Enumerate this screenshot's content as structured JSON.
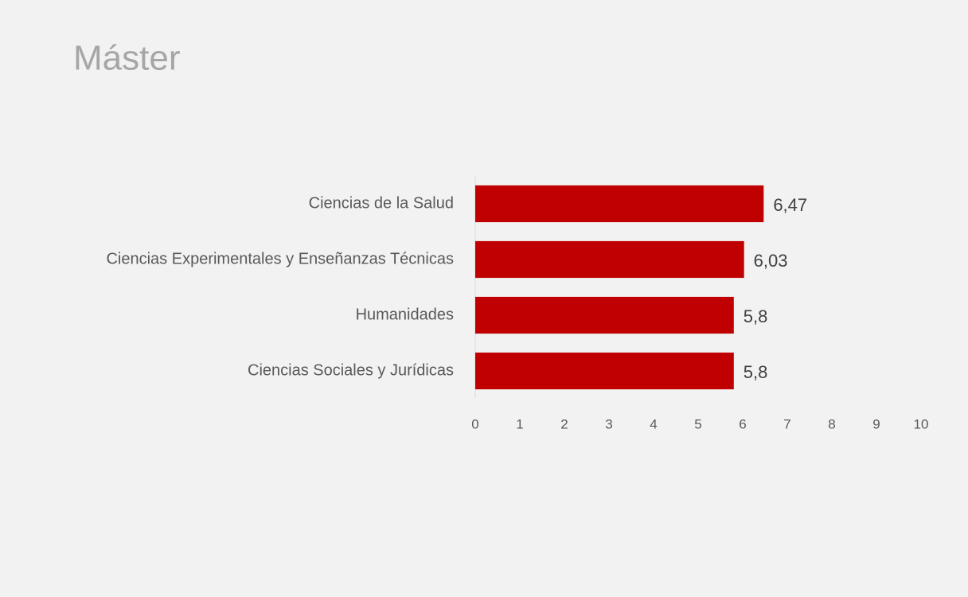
{
  "chart_data": {
    "type": "bar",
    "orientation": "horizontal",
    "title": "Máster",
    "categories": [
      "Ciencias de la Salud",
      "Ciencias Experimentales y Enseñanzas Técnicas",
      "Humanidades",
      "Ciencias Sociales y Jurídicas"
    ],
    "values": [
      6.47,
      6.03,
      5.8,
      5.8
    ],
    "value_labels": [
      "6,47",
      "6,03",
      "5,8",
      "5,8"
    ],
    "color": "#c00000",
    "xlim": [
      0,
      10
    ],
    "xticks": [
      0,
      1,
      2,
      3,
      4,
      5,
      6,
      7,
      8,
      9,
      10
    ],
    "grid": false
  }
}
